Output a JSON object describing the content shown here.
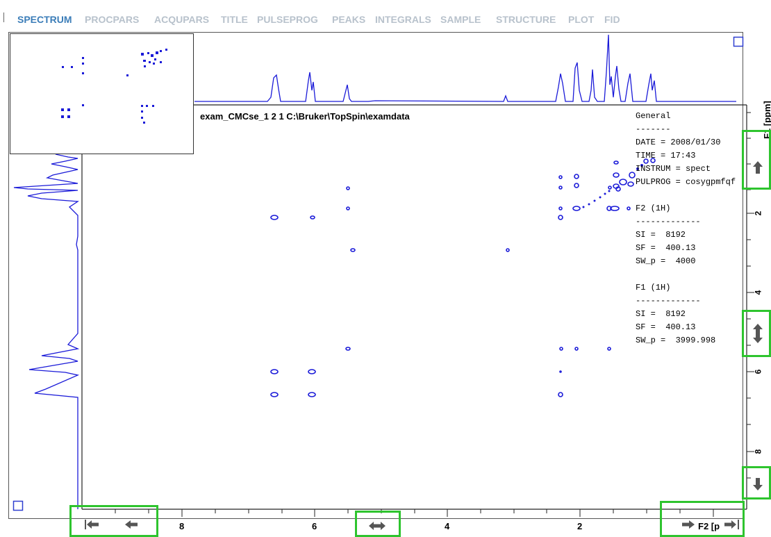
{
  "tabs": [
    "SPECTRUM",
    "PROCPARS",
    "ACQUPARS",
    "TITLE",
    "PULSEPROG",
    "PEAKS",
    "INTEGRALS",
    "SAMPLE",
    "STRUCTURE",
    "PLOT",
    "FID"
  ],
  "active_tab": "SPECTRUM",
  "dataset_title": "exam_CMCse_1  2  1  C:\\Bruker\\TopSpin\\examdata",
  "params": [
    "General",
    "-------",
    "DATE = 2008/01/30",
    "TIME = 17:43",
    "INSTRUM = spect",
    "PULPROG = cosygpmfqf",
    "",
    "F2 (1H)",
    "-------------",
    "SI =  8192",
    "SF =  400.13",
    "SW_p =  4000",
    "",
    "F1 (1H)",
    "-------------",
    "SI =  8192",
    "SF =  400.13",
    "SW_p =  3999.998"
  ],
  "axis": {
    "f1_label": "F1 [ppm]",
    "f2_label": "F2 [p",
    "y_ticks": [
      "2",
      "4",
      "6",
      "8"
    ],
    "x_ticks": [
      "8",
      "6",
      "4",
      "2"
    ]
  },
  "colors": {
    "spectrum": "#1a1ad8",
    "highlight": "#2ec42e",
    "active_tab": "#3b7db8",
    "inactive_tab": "#b8c2cc"
  },
  "buttons": {
    "first_left": "arrow-left-end-icon",
    "left": "arrow-left-icon",
    "center_h": "arrow-left-right-icon",
    "right_end": "arrow-right-end-icon",
    "up": "arrow-up-icon",
    "center_v": "arrow-up-down-icon",
    "down": "arrow-down-icon"
  }
}
